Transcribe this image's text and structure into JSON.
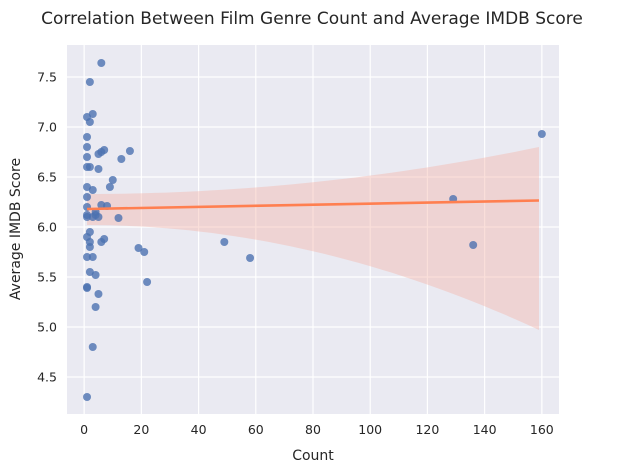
{
  "chart_data": {
    "type": "scatter",
    "title": "Correlation Between Film Genre Count and Average IMDB Score",
    "xlabel": "Count",
    "ylabel": "Average IMDB Score",
    "xlim": [
      -6,
      166
    ],
    "ylim": [
      4.13,
      7.82
    ],
    "xticks": [
      0,
      20,
      40,
      60,
      80,
      100,
      120,
      140,
      160
    ],
    "yticks": [
      4.5,
      5.0,
      5.5,
      6.0,
      6.5,
      7.0,
      7.5
    ],
    "grid": true,
    "background": "#eaeaf2",
    "point_color": "#4c72b0",
    "line_color": "#ff7f50",
    "band_color": "#f5b8ac",
    "points": [
      {
        "x": 1,
        "y": 4.3
      },
      {
        "x": 3,
        "y": 4.8
      },
      {
        "x": 4,
        "y": 5.2
      },
      {
        "x": 5,
        "y": 5.33
      },
      {
        "x": 1,
        "y": 5.39
      },
      {
        "x": 1,
        "y": 5.4
      },
      {
        "x": 2,
        "y": 5.55
      },
      {
        "x": 4,
        "y": 5.52
      },
      {
        "x": 1,
        "y": 5.7
      },
      {
        "x": 3,
        "y": 5.7
      },
      {
        "x": 2,
        "y": 5.8
      },
      {
        "x": 2,
        "y": 5.85
      },
      {
        "x": 1,
        "y": 5.9
      },
      {
        "x": 2,
        "y": 5.95
      },
      {
        "x": 6,
        "y": 5.85
      },
      {
        "x": 7,
        "y": 5.88
      },
      {
        "x": 1,
        "y": 6.1
      },
      {
        "x": 1,
        "y": 6.12
      },
      {
        "x": 3,
        "y": 6.1
      },
      {
        "x": 4,
        "y": 6.12
      },
      {
        "x": 5,
        "y": 6.1
      },
      {
        "x": 4,
        "y": 6.15
      },
      {
        "x": 1,
        "y": 6.2
      },
      {
        "x": 6,
        "y": 6.22
      },
      {
        "x": 8,
        "y": 6.21
      },
      {
        "x": 12,
        "y": 6.09
      },
      {
        "x": 1,
        "y": 6.3
      },
      {
        "x": 3,
        "y": 6.37
      },
      {
        "x": 1,
        "y": 6.4
      },
      {
        "x": 9,
        "y": 6.4
      },
      {
        "x": 10,
        "y": 6.47
      },
      {
        "x": 5,
        "y": 6.58
      },
      {
        "x": 1,
        "y": 6.6
      },
      {
        "x": 2,
        "y": 6.6
      },
      {
        "x": 13,
        "y": 6.68
      },
      {
        "x": 1,
        "y": 6.7
      },
      {
        "x": 5,
        "y": 6.73
      },
      {
        "x": 6,
        "y": 6.75
      },
      {
        "x": 7,
        "y": 6.77
      },
      {
        "x": 16,
        "y": 6.76
      },
      {
        "x": 1,
        "y": 6.8
      },
      {
        "x": 1,
        "y": 6.9
      },
      {
        "x": 2,
        "y": 7.05
      },
      {
        "x": 1,
        "y": 7.1
      },
      {
        "x": 3,
        "y": 7.13
      },
      {
        "x": 2,
        "y": 7.45
      },
      {
        "x": 6,
        "y": 7.64
      },
      {
        "x": 19,
        "y": 5.79
      },
      {
        "x": 21,
        "y": 5.75
      },
      {
        "x": 22,
        "y": 5.45
      },
      {
        "x": 49,
        "y": 5.85
      },
      {
        "x": 58,
        "y": 5.69
      },
      {
        "x": 129,
        "y": 6.28
      },
      {
        "x": 136,
        "y": 5.82
      },
      {
        "x": 160,
        "y": 6.93
      }
    ],
    "regression": {
      "x": [
        1,
        159
      ],
      "y": [
        6.18,
        6.265
      ],
      "ci_lower": [
        6.02,
        4.97
      ],
      "ci_upper": [
        6.33,
        6.8
      ]
    }
  }
}
